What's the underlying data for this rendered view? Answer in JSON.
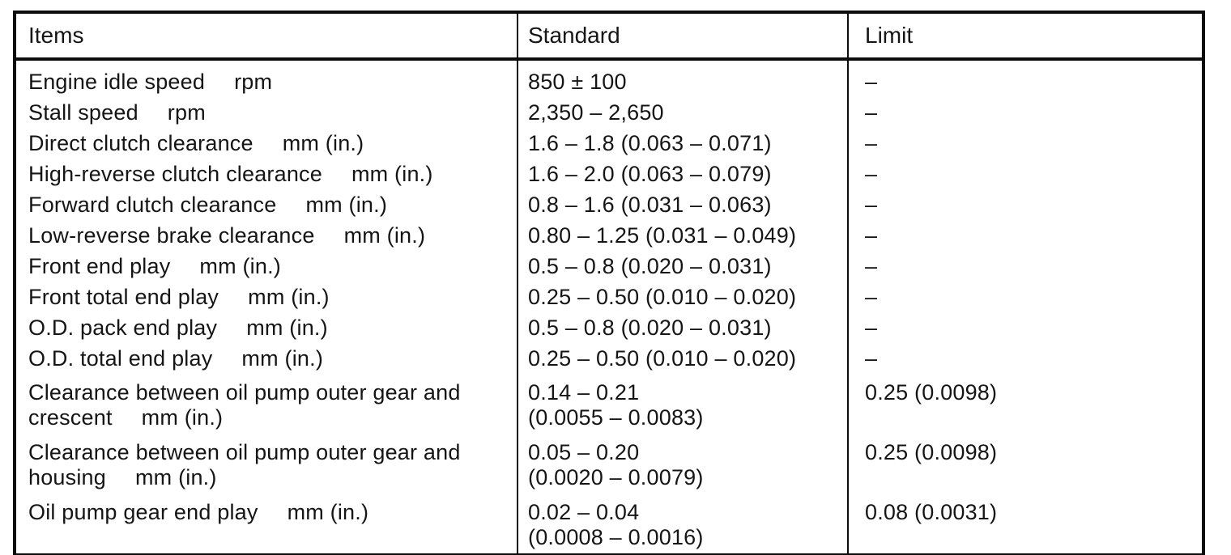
{
  "table": {
    "columns": [
      "Items",
      "Standard",
      "Limit"
    ],
    "rows": [
      {
        "item_lines": [
          "Engine idle speed"
        ],
        "unit": "rpm",
        "standard_lines": [
          "850 ± 100"
        ],
        "limit": "–"
      },
      {
        "item_lines": [
          "Stall speed"
        ],
        "unit": "rpm",
        "standard_lines": [
          "2,350 – 2,650"
        ],
        "limit": "–"
      },
      {
        "item_lines": [
          "Direct clutch clearance"
        ],
        "unit": "mm (in.)",
        "standard_lines": [
          "1.6 – 1.8 (0.063 – 0.071)"
        ],
        "limit": "–"
      },
      {
        "item_lines": [
          "High-reverse clutch clearance"
        ],
        "unit": "mm (in.)",
        "standard_lines": [
          "1.6 – 2.0 (0.063 – 0.079)"
        ],
        "limit": "–"
      },
      {
        "item_lines": [
          "Forward clutch clearance"
        ],
        "unit": "mm (in.)",
        "standard_lines": [
          "0.8 – 1.6 (0.031 – 0.063)"
        ],
        "limit": "–"
      },
      {
        "item_lines": [
          "Low-reverse brake clearance"
        ],
        "unit": "mm (in.)",
        "standard_lines": [
          "0.80 – 1.25 (0.031 – 0.049)"
        ],
        "limit": "–"
      },
      {
        "item_lines": [
          "Front end play"
        ],
        "unit": "mm (in.)",
        "standard_lines": [
          "0.5 – 0.8 (0.020 – 0.031)"
        ],
        "limit": "–"
      },
      {
        "item_lines": [
          "Front total end play"
        ],
        "unit": "mm (in.)",
        "standard_lines": [
          "0.25 – 0.50 (0.010 – 0.020)"
        ],
        "limit": "–"
      },
      {
        "item_lines": [
          "O.D. pack end play"
        ],
        "unit": "mm (in.)",
        "standard_lines": [
          "0.5 – 0.8 (0.020 – 0.031)"
        ],
        "limit": "–"
      },
      {
        "item_lines": [
          "O.D. total end play"
        ],
        "unit": "mm (in.)",
        "standard_lines": [
          "0.25 – 0.50 (0.010 – 0.020)"
        ],
        "limit": "–"
      },
      {
        "item_lines": [
          "Clearance between oil pump outer gear and",
          "crescent"
        ],
        "unit": "mm (in.)",
        "standard_lines": [
          "0.14 – 0.21",
          "(0.0055 – 0.0083)"
        ],
        "limit": "0.25 (0.0098)"
      },
      {
        "item_lines": [
          "Clearance between oil pump outer gear and",
          "housing"
        ],
        "unit": "mm (in.)",
        "standard_lines": [
          "0.05 – 0.20",
          "(0.0020 – 0.0079)"
        ],
        "limit": "0.25 (0.0098)"
      },
      {
        "item_lines": [
          "Oil pump gear end play"
        ],
        "unit": "mm (in.)",
        "standard_lines": [
          "0.02 – 0.04",
          "(0.0008 – 0.0016)"
        ],
        "limit": "0.08 (0.0031)"
      }
    ]
  }
}
